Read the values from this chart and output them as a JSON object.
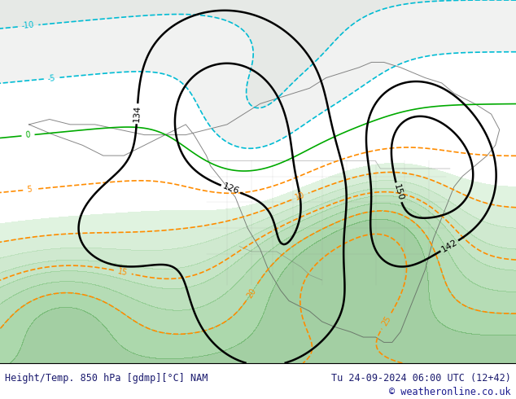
{
  "title_left": "Height/Temp. 850 hPa [gdmp][°C] NAM",
  "title_right": "Tu 24-09-2024 06:00 UTC (12+42)",
  "copyright": "© weatheronline.co.uk",
  "bg_color": "#ffffff",
  "map_bg": "#b8d4b8",
  "footer_text_color": "#1a1a6e",
  "footer_bg": "#ffffff",
  "fig_width": 6.34,
  "fig_height": 4.9,
  "dpi": 100,
  "contour_black_levels": [
    126,
    134,
    142,
    150
  ],
  "contour_black_color": "#000000",
  "contour_black_lw": 1.8,
  "contour_temp_neg_color": "#00bcd4",
  "contour_temp_pos_color": "#ff8c00",
  "contour_temp_zero_color": "#00aa00",
  "contour_temp_lw": 1.2,
  "label_fontsize": 7,
  "footer_fontsize": 8.5,
  "footer_copyright_color": "#1a1a8e"
}
